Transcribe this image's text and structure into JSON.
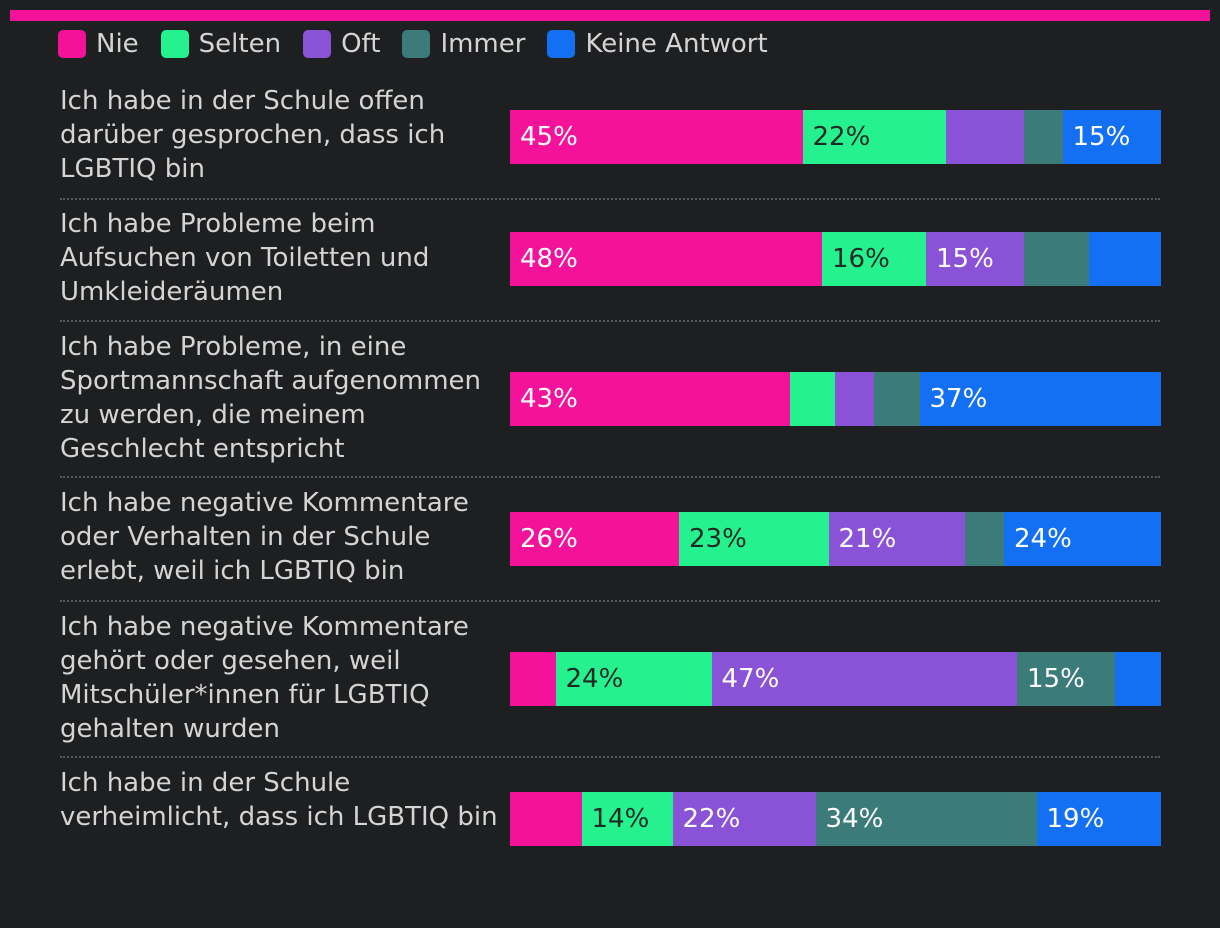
{
  "colors": {
    "Nie": "#f5129b",
    "Selten": "#25f28f",
    "Oft": "#8a52d6",
    "Immer": "#3b7b7a",
    "Keine Antwort": "#1370f5",
    "top_bar": "#f5129b",
    "background": "#1e1f21"
  },
  "chart_data": {
    "type": "bar",
    "orientation": "horizontal",
    "stacked": true,
    "normalized": true,
    "legend_position": "top-left",
    "categories": [
      "Ich habe in der Schule offen darüber gesprochen, dass ich LGBTIQ bin",
      "Ich habe Probleme beim Aufsuchen von Toiletten und Umkleideräumen",
      "Ich habe Probleme, in eine Sportmannschaft aufgenommen zu werden, die meinem Geschlecht entspricht",
      "Ich habe negative Kommentare oder Verhalten in der Schule erlebt, weil ich LGBTIQ bin",
      "Ich habe negative Kommentare gehört oder gesehen, weil Mitschüler*innen für LGBTIQ gehalten wurden",
      "Ich habe in der Schule verheimlicht, dass ich LGBTIQ bin"
    ],
    "series": [
      {
        "name": "Nie",
        "values": [
          45,
          48,
          43,
          26,
          7,
          11
        ],
        "labels": [
          "45%",
          "48%",
          "43%",
          "26%",
          "",
          ""
        ]
      },
      {
        "name": "Selten",
        "values": [
          22,
          16,
          7,
          23,
          24,
          14
        ],
        "labels": [
          "22%",
          "16%",
          "",
          "23%",
          "24%",
          "14%"
        ]
      },
      {
        "name": "Oft",
        "values": [
          12,
          15,
          6,
          21,
          47,
          22
        ],
        "labels": [
          "",
          "15%",
          "",
          "21%",
          "47%",
          "22%"
        ]
      },
      {
        "name": "Immer",
        "values": [
          6,
          10,
          7,
          6,
          15,
          34
        ],
        "labels": [
          "",
          "",
          "",
          "",
          "15%",
          "34%"
        ]
      },
      {
        "name": "Keine Antwort",
        "values": [
          15,
          11,
          37,
          24,
          7,
          19
        ],
        "labels": [
          "15%",
          "",
          "37%",
          "24%",
          "",
          "19%"
        ]
      }
    ]
  }
}
